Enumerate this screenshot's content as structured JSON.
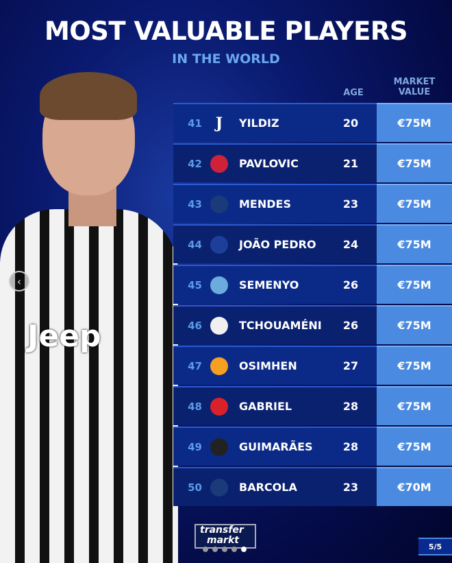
{
  "title": "MOST VALUABLE PLAYERS",
  "subtitle": "IN THE WORLD",
  "headers": {
    "age": "AGE",
    "market_value_line1": "MARKET",
    "market_value_line2": "VALUE"
  },
  "players": [
    {
      "rank": "41",
      "club": "juventus",
      "name": "YILDIZ",
      "age": "20",
      "value": "€75M"
    },
    {
      "rank": "42",
      "club": "bayern-munich",
      "name": "PAVLOVIC",
      "age": "21",
      "value": "€75M"
    },
    {
      "rank": "43",
      "club": "psg",
      "name": "MENDES",
      "age": "23",
      "value": "€75M"
    },
    {
      "rank": "44",
      "club": "chelsea",
      "name": "JOÃO PEDRO",
      "age": "24",
      "value": "€75M"
    },
    {
      "rank": "45",
      "club": "manchester-city",
      "name": "SEMENYO",
      "age": "26",
      "value": "€75M"
    },
    {
      "rank": "46",
      "club": "real-madrid",
      "name": "TCHOUAMÉNI",
      "age": "26",
      "value": "€75M"
    },
    {
      "rank": "47",
      "club": "galatasaray",
      "name": "OSIMHEN",
      "age": "27",
      "value": "€75M"
    },
    {
      "rank": "48",
      "club": "arsenal",
      "name": "GABRIEL",
      "age": "28",
      "value": "€75M"
    },
    {
      "rank": "49",
      "club": "newcastle",
      "name": "GUIMARÃES",
      "age": "28",
      "value": "€75M"
    },
    {
      "rank": "50",
      "club": "psg",
      "name": "BARCOLA",
      "age": "23",
      "value": "€70M"
    }
  ],
  "shirt_sponsor": "Jeep",
  "logo": {
    "line1": "transfer",
    "line2": "markt"
  },
  "pagination": {
    "label": "5/5",
    "total": 5,
    "current": 5
  },
  "colors": {
    "row": "#0b2a88",
    "value_cell": "#4a8ae0",
    "rank": "#5a9be6",
    "accent": "#6aa8f0"
  }
}
